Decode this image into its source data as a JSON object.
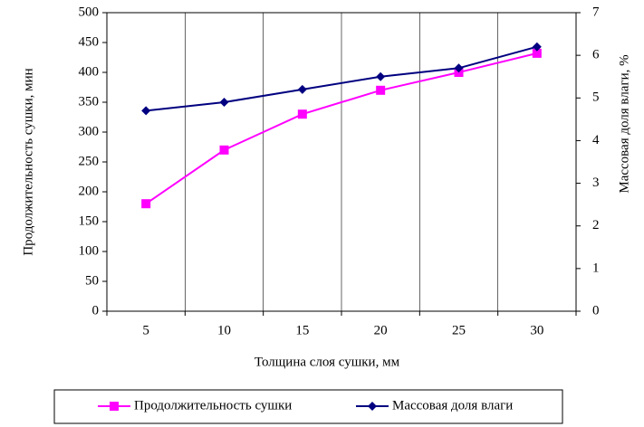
{
  "chart_data": {
    "type": "line",
    "categories": [
      5,
      10,
      15,
      20,
      25,
      30
    ],
    "x_label": "Толщина слоя сушки, мм",
    "y_label": "Продолжительность сушки, мин",
    "y2_label": "Массовая доля влаги, %",
    "ylim": [
      0,
      500
    ],
    "yticks": [
      0,
      50,
      100,
      150,
      200,
      250,
      300,
      350,
      400,
      450,
      500
    ],
    "y2lim": [
      0,
      7
    ],
    "y2ticks": [
      0,
      1,
      2,
      3,
      4,
      5,
      6,
      7
    ],
    "series": [
      {
        "name": "Продолжительность сушки",
        "color": "#ff00ff",
        "marker": "square",
        "values": [
          180,
          270,
          330,
          370,
          400,
          432
        ]
      },
      {
        "name": "Массовая доля влаги",
        "color": "#000080",
        "marker": "diamond",
        "axis": "y2",
        "values": [
          4.7,
          4.9,
          5.2,
          5.5,
          5.7,
          6.2
        ]
      }
    ],
    "legend": "bottom"
  }
}
